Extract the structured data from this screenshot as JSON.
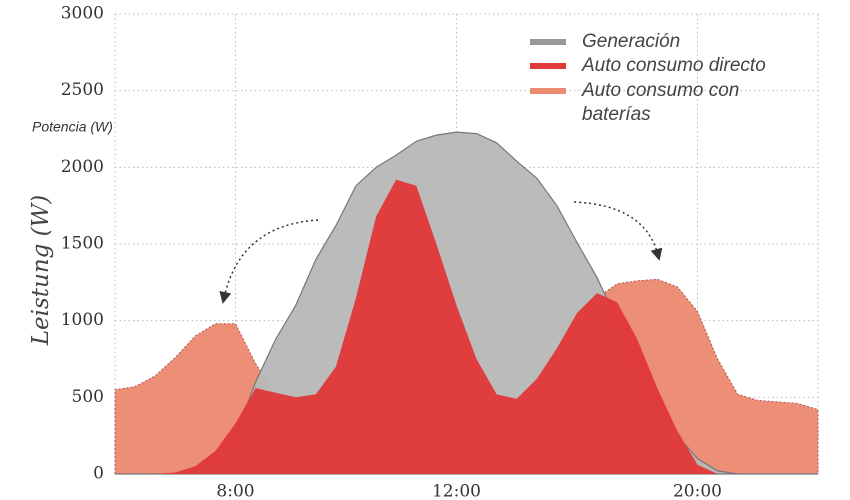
{
  "chart_data": {
    "type": "area",
    "y_label": "Leistung (W)",
    "annotation": "Potencia (W)",
    "categories": [
      null,
      null,
      null,
      null,
      null,
      null,
      "8:00",
      null,
      null,
      null,
      null,
      null,
      null,
      null,
      null,
      null,
      null,
      "12:00",
      null,
      null,
      null,
      null,
      null,
      null,
      null,
      null,
      null,
      null,
      null,
      "20:00",
      null,
      null,
      null,
      null,
      null,
      null
    ],
    "series": [
      {
        "name": "Auto consumo con baterías",
        "color": "#ec8a72",
        "values": [
          550,
          570,
          640,
          760,
          900,
          980,
          980,
          720,
          520,
          300,
          100,
          0,
          0,
          0,
          0,
          0,
          0,
          0,
          0,
          0,
          0,
          0,
          200,
          700,
          1150,
          1240,
          1260,
          1270,
          1220,
          1060,
          750,
          520,
          480,
          470,
          460,
          420
        ]
      },
      {
        "name": "Generación",
        "color": "#b9b9b9",
        "values": [
          0,
          0,
          0,
          0,
          20,
          80,
          250,
          600,
          880,
          1100,
          1400,
          1620,
          1880,
          2000,
          2080,
          2170,
          2210,
          2230,
          2220,
          2160,
          2040,
          1930,
          1750,
          1510,
          1280,
          1000,
          700,
          450,
          250,
          100,
          20,
          0,
          0,
          0,
          0,
          0
        ]
      },
      {
        "name": "Auto consumo directo",
        "color": "#e0393a",
        "values": [
          0,
          0,
          0,
          10,
          50,
          150,
          330,
          560,
          530,
          500,
          520,
          700,
          1150,
          1680,
          1920,
          1880,
          1500,
          1100,
          750,
          520,
          490,
          620,
          820,
          1050,
          1180,
          1120,
          880,
          560,
          280,
          60,
          0,
          0,
          0,
          0,
          0,
          0
        ]
      }
    ],
    "legend_order": [
      1,
      2,
      0
    ],
    "ylim": [
      0,
      3000
    ],
    "yticks": [
      0,
      500,
      1000,
      1500,
      2000,
      2500,
      3000
    ],
    "grid": true
  }
}
